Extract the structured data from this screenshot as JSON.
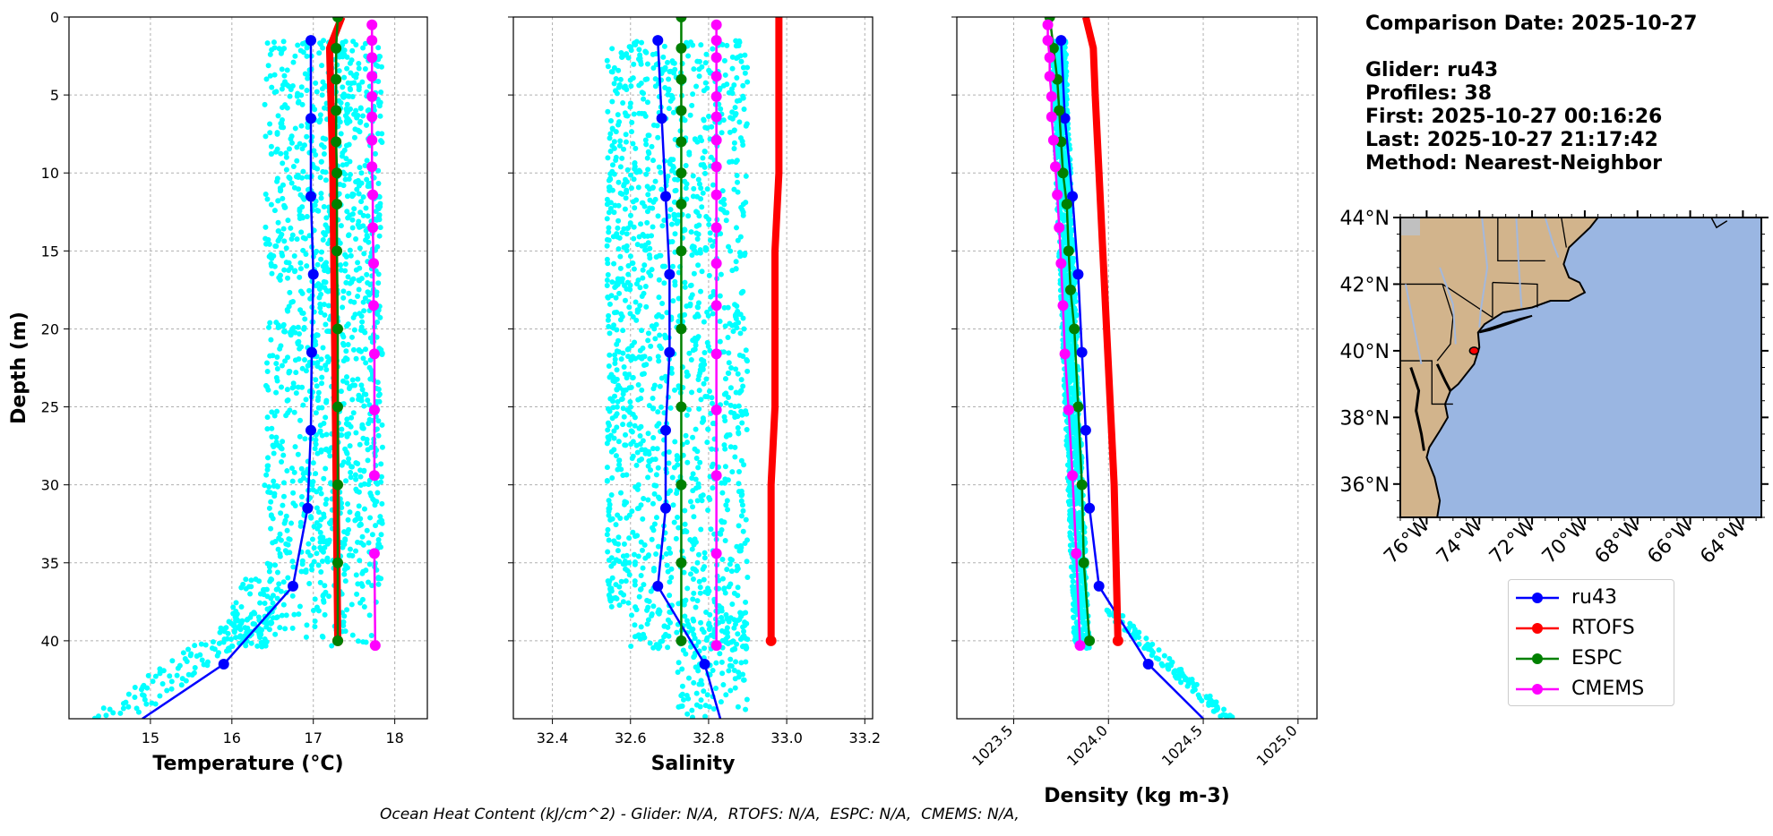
{
  "info": {
    "comparison_date": "Comparison Date: 2025-10-27",
    "glider": "Glider: ru43",
    "profiles": "Profiles: 38",
    "first": "First: 2025-10-27 00:16:26",
    "last": "Last: 2025-10-27 21:17:42",
    "method": "Method: Nearest-Neighbor"
  },
  "footer": "Ocean Heat Content (kJ/cm^2) - Glider: N/A,  RTOFS: N/A,  ESPC: N/A,  CMEMS: N/A,",
  "legend": [
    {
      "name": "ru43",
      "color": "#0000ff"
    },
    {
      "name": "RTOFS",
      "color": "#ff0000"
    },
    {
      "name": "ESPC",
      "color": "#008000"
    },
    {
      "name": "CMEMS",
      "color": "#ff00ff"
    }
  ],
  "colors": {
    "glider_scatter": "#00ffff",
    "land": "#d2b48c",
    "ocean": "#9ab6e2",
    "river": "#a3b8dc"
  },
  "chart_data": [
    {
      "type": "line",
      "xlabel": "Temperature (°C)",
      "ylabel": "Depth (m)",
      "xlim": [
        14.0,
        18.4
      ],
      "ylim": [
        45,
        0
      ],
      "xticks": [
        15,
        16,
        17,
        18
      ],
      "yticks": [
        0,
        5,
        10,
        15,
        20,
        25,
        30,
        35,
        40
      ],
      "grid": true,
      "scatter": {
        "name": "glider profiles",
        "x_range_upper": [
          16.4,
          17.85
        ],
        "x_range_lower": [
          14.5,
          16.6
        ],
        "depth_range": [
          1.5,
          45
        ]
      },
      "series": [
        {
          "name": "ru43",
          "x": [
            16.97,
            16.97,
            16.97,
            17.0,
            16.98,
            16.97,
            16.93,
            16.75,
            15.9,
            14.9
          ],
          "y": [
            1.5,
            6.5,
            11.5,
            16.5,
            21.5,
            26.5,
            31.5,
            36.5,
            41.5,
            45
          ]
        },
        {
          "name": "RTOFS",
          "x": [
            17.35,
            17.2,
            17.22,
            17.24,
            17.25,
            17.26,
            17.27,
            17.28,
            17.29,
            17.3
          ],
          "y": [
            0,
            2,
            6,
            10,
            15,
            20,
            25,
            30,
            35,
            40
          ]
        },
        {
          "name": "ESPC",
          "x": [
            17.3,
            17.28,
            17.28,
            17.28,
            17.28,
            17.29,
            17.29,
            17.29,
            17.3,
            17.3,
            17.3,
            17.3,
            17.3
          ],
          "y": [
            0,
            2,
            4,
            6,
            8,
            10,
            12,
            15,
            20,
            25,
            30,
            35,
            40
          ]
        },
        {
          "name": "CMEMS",
          "x": [
            17.72,
            17.72,
            17.72,
            17.72,
            17.72,
            17.72,
            17.72,
            17.72,
            17.73,
            17.73,
            17.74,
            17.74,
            17.75,
            17.75,
            17.75
          ],
          "y": [
            0.5,
            1.5,
            2.6,
            3.8,
            5.1,
            6.4,
            7.9,
            9.6,
            11.4,
            13.5,
            15.8,
            18.5,
            21.6,
            25.2,
            29.4
          ]
        },
        {
          "name": "CMEMS_deep",
          "x": [
            17.75,
            17.76
          ],
          "y": [
            34.4,
            40.3
          ]
        }
      ]
    },
    {
      "type": "line",
      "xlabel": "Salinity",
      "xlim": [
        32.3,
        33.22
      ],
      "ylim": [
        45,
        0
      ],
      "xticks": [
        32.4,
        32.6,
        32.8,
        33.0,
        33.2
      ],
      "grid": true,
      "scatter": {
        "name": "glider profiles",
        "x_range": [
          32.54,
          32.9
        ],
        "depth_range": [
          1.5,
          45
        ]
      },
      "series": [
        {
          "name": "ru43",
          "x": [
            32.67,
            32.68,
            32.69,
            32.7,
            32.7,
            32.69,
            32.69,
            32.67,
            32.79,
            32.83
          ],
          "y": [
            1.5,
            6.5,
            11.5,
            16.5,
            21.5,
            26.5,
            31.5,
            36.5,
            41.5,
            45
          ]
        },
        {
          "name": "RTOFS",
          "x": [
            32.98,
            32.98,
            32.98,
            32.97,
            32.97,
            32.97,
            32.96,
            32.96,
            32.96
          ],
          "y": [
            0,
            5,
            10,
            15,
            20,
            25,
            30,
            35,
            40
          ]
        },
        {
          "name": "ESPC",
          "x": [
            32.73,
            32.73,
            32.73,
            32.73,
            32.73,
            32.73,
            32.73,
            32.73,
            32.73,
            32.73,
            32.73,
            32.73,
            32.73
          ],
          "y": [
            0,
            2,
            4,
            6,
            8,
            10,
            12,
            15,
            20,
            25,
            30,
            35,
            40
          ]
        },
        {
          "name": "CMEMS",
          "x": [
            32.82,
            32.82,
            32.82,
            32.82,
            32.82,
            32.82,
            32.82,
            32.82,
            32.82,
            32.82,
            32.82,
            32.82,
            32.82,
            32.82,
            32.82,
            32.82,
            32.82
          ],
          "y": [
            0.5,
            1.5,
            2.6,
            3.8,
            5.1,
            6.4,
            7.9,
            9.6,
            11.4,
            13.5,
            15.8,
            18.5,
            21.6,
            25.2,
            29.4,
            34.4,
            40.3
          ]
        }
      ]
    },
    {
      "type": "line",
      "xlabel": "Density (kg m-3)",
      "xlim": [
        1023.2,
        1025.1
      ],
      "ylim": [
        45,
        0
      ],
      "xticks": [
        1023.5,
        1024.0,
        1024.5,
        1025.0
      ],
      "xticklabels": [
        "1023.5",
        "1024.0",
        "1024.5",
        "1025.0"
      ],
      "grid": true,
      "scatter": {
        "name": "glider profiles",
        "x_band": [
          1023.72,
          1023.85
        ],
        "depth_range": [
          1.5,
          45
        ]
      },
      "series": [
        {
          "name": "ru43",
          "x": [
            1023.75,
            1023.77,
            1023.81,
            1023.84,
            1023.86,
            1023.88,
            1023.9,
            1023.95,
            1024.21,
            1024.5
          ],
          "y": [
            1.5,
            6.5,
            11.5,
            16.5,
            21.5,
            26.5,
            31.5,
            36.5,
            41.5,
            45
          ]
        },
        {
          "name": "RTOFS",
          "x": [
            1023.88,
            1023.92,
            1023.93,
            1023.95,
            1023.97,
            1023.99,
            1024.01,
            1024.03,
            1024.04,
            1024.05
          ],
          "y": [
            0,
            2,
            5,
            10,
            15,
            20,
            25,
            30,
            35,
            40
          ]
        },
        {
          "name": "ESPC",
          "x": [
            1023.69,
            1023.71,
            1023.73,
            1023.74,
            1023.75,
            1023.76,
            1023.78,
            1023.79,
            1023.8,
            1023.82,
            1023.84,
            1023.86,
            1023.87,
            1023.9
          ],
          "y": [
            0,
            2,
            4,
            6,
            8,
            10,
            12,
            15,
            17.5,
            20,
            25,
            30,
            35,
            40
          ]
        },
        {
          "name": "CMEMS",
          "x": [
            1023.68,
            1023.68,
            1023.69,
            1023.69,
            1023.7,
            1023.7,
            1023.71,
            1023.72,
            1023.73,
            1023.74,
            1023.75,
            1023.76,
            1023.77,
            1023.79,
            1023.81,
            1023.83,
            1023.85
          ],
          "y": [
            0.5,
            1.5,
            2.6,
            3.8,
            5.1,
            6.4,
            7.9,
            9.6,
            11.4,
            13.5,
            15.8,
            18.5,
            21.6,
            25.2,
            29.4,
            34.4,
            40.3
          ]
        }
      ]
    },
    {
      "type": "map",
      "lat_range": [
        35,
        44
      ],
      "lon_range": [
        -77,
        -63.3
      ],
      "lat_ticks": [
        36,
        38,
        40,
        42,
        44
      ],
      "lat_labels": [
        "36°N",
        "38°N",
        "40°N",
        "42°N",
        "44°N"
      ],
      "lon_ticks": [
        -76,
        -74,
        -72,
        -70,
        -68,
        -66,
        -64
      ],
      "lon_labels": [
        "76°W",
        "74°W",
        "72°W",
        "70°W",
        "68°W",
        "66°W",
        "64°W"
      ],
      "glider_track": {
        "lat": 40.0,
        "lon": -74.2
      }
    }
  ]
}
